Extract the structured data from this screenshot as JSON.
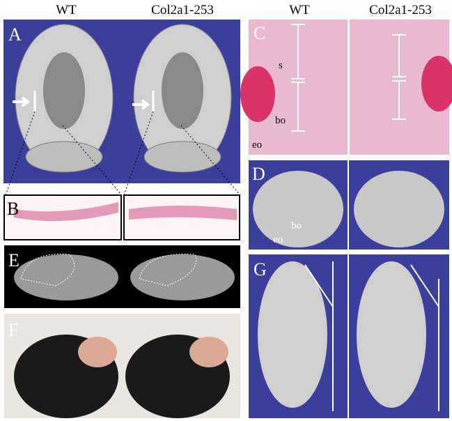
{
  "column_headers_left": [
    "WT",
    "Col2a1-253"
  ],
  "column_headers_right": [
    "WT",
    "Col2a1-253"
  ],
  "panels": {
    "A": "A",
    "B": "B",
    "C": "C",
    "D": "D",
    "E": "E",
    "F": "F",
    "G": "G"
  },
  "panel_C_labels": {
    "s": "s",
    "bo": "bo",
    "eo": "eo"
  },
  "panel_D_labels": {
    "bo": "bo",
    "eo": "eo"
  }
}
